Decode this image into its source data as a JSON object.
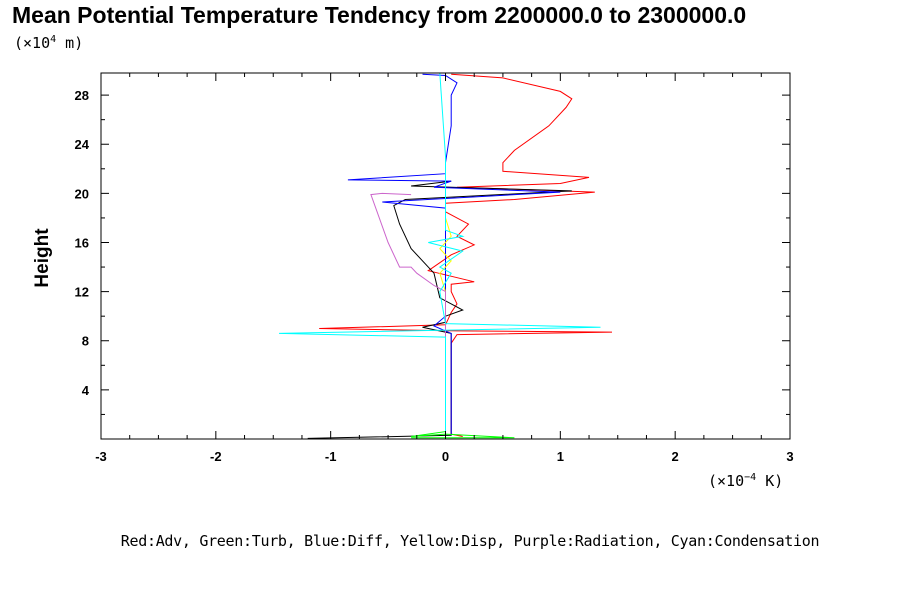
{
  "chart_data": {
    "type": "line",
    "title": "Mean Potential Temperature Tendency from 2200000.0 to 2300000.0",
    "ylabel": "Height",
    "yunit_base": "(×10",
    "yunit_exp": "4",
    "yunit_tail": " m)",
    "xunit_base": "(×10",
    "xunit_exp": "−4",
    "xunit_tail": " K)",
    "legend_text": "Red:Adv, Green:Turb, Blue:Diff, Yellow:Disp, Purple:Radiation, Cyan:Condensation",
    "xlim": [
      -3,
      3
    ],
    "ylim": [
      0,
      29.8
    ],
    "xticks": [
      -3,
      -2,
      -1,
      0,
      1,
      2,
      3
    ],
    "yticks": [
      4,
      8,
      12,
      16,
      20,
      24,
      28
    ],
    "series": [
      {
        "color": "#ff0000",
        "points": [
          [
            0.15,
            0.2
          ],
          [
            0.05,
            0.4
          ],
          [
            0.05,
            4
          ],
          [
            0.05,
            7.8
          ],
          [
            0.1,
            8.5
          ],
          [
            1.45,
            8.7
          ],
          [
            0.1,
            8.8
          ],
          [
            -1.1,
            9
          ],
          [
            0,
            9.3
          ],
          [
            0.05,
            10.3
          ],
          [
            0.1,
            11
          ],
          [
            0.05,
            12
          ],
          [
            0.05,
            12.6
          ],
          [
            0.25,
            12.8
          ],
          [
            -0.15,
            13.7
          ],
          [
            0.05,
            15
          ],
          [
            0.25,
            15.8
          ],
          [
            0.1,
            16.5
          ],
          [
            0.2,
            17.5
          ],
          [
            0,
            18.5
          ],
          [
            0,
            19.2
          ],
          [
            0.6,
            19.5
          ],
          [
            1.3,
            20.1
          ],
          [
            0.1,
            20.5
          ],
          [
            1,
            20.8
          ],
          [
            1.25,
            21.3
          ],
          [
            0.5,
            21.8
          ],
          [
            0.5,
            22.5
          ],
          [
            0.6,
            23.5
          ],
          [
            0.9,
            25.5
          ],
          [
            1.05,
            27
          ],
          [
            1.1,
            27.7
          ],
          [
            1.0,
            28.3
          ],
          [
            0.5,
            29.4
          ],
          [
            0.05,
            29.7
          ]
        ]
      },
      {
        "color": "#000000",
        "points": [
          [
            -1.2,
            0.05
          ],
          [
            0.05,
            0.3
          ],
          [
            0.05,
            4
          ],
          [
            0.05,
            7.8
          ],
          [
            0.05,
            8.6
          ],
          [
            -0.2,
            9.1
          ],
          [
            0,
            9.5
          ],
          [
            0,
            10
          ],
          [
            0.15,
            10.5
          ],
          [
            -0.05,
            11.5
          ],
          [
            -0.1,
            13.5
          ],
          [
            -0.3,
            15.5
          ],
          [
            -0.4,
            17.5
          ],
          [
            -0.45,
            19
          ],
          [
            -0.35,
            19.5
          ],
          [
            1.1,
            20.2
          ],
          [
            -0.3,
            20.6
          ],
          [
            0.05,
            21
          ]
        ]
      },
      {
        "color": "#0000ff",
        "points": [
          [
            0.05,
            0.3
          ],
          [
            0.05,
            8.6
          ],
          [
            -0.1,
            9.2
          ],
          [
            0,
            10
          ],
          [
            0,
            12
          ],
          [
            0,
            17
          ],
          [
            0,
            18.8
          ],
          [
            -0.55,
            19.3
          ],
          [
            1.0,
            20.1
          ],
          [
            -0.1,
            20.5
          ],
          [
            0.05,
            21
          ],
          [
            -0.85,
            21.1
          ],
          [
            0,
            21.6
          ],
          [
            0,
            22.5
          ],
          [
            0.05,
            25.5
          ],
          [
            0.05,
            28
          ],
          [
            0.1,
            29
          ],
          [
            0,
            29.6
          ],
          [
            -0.2,
            29.7
          ]
        ]
      },
      {
        "color": "#00ff00",
        "points": [
          [
            -0.3,
            0.1
          ],
          [
            0.6,
            0.1
          ],
          [
            0,
            0.4
          ],
          [
            -0.3,
            0.2
          ],
          [
            0,
            0.6
          ],
          [
            0,
            8.5
          ],
          [
            0,
            8.8
          ]
        ]
      },
      {
        "color": "#ffff00",
        "points": [
          [
            0,
            7
          ],
          [
            0,
            8.2
          ],
          [
            0,
            8.8
          ],
          [
            0,
            12
          ],
          [
            -0.05,
            13.5
          ],
          [
            0.05,
            14.5
          ],
          [
            -0.05,
            15.5
          ],
          [
            0.05,
            16.5
          ],
          [
            0,
            18
          ],
          [
            0,
            19.5
          ]
        ]
      },
      {
        "color": "#cc66cc",
        "points": [
          [
            0,
            0.3
          ],
          [
            0,
            12
          ],
          [
            -0.1,
            12.5
          ],
          [
            -0.25,
            13.5
          ],
          [
            -0.3,
            14
          ],
          [
            -0.4,
            14
          ],
          [
            -0.5,
            16
          ],
          [
            -0.65,
            19.9
          ],
          [
            -0.55,
            20
          ],
          [
            -0.3,
            19.9
          ]
        ]
      },
      {
        "color": "#00ffff",
        "points": [
          [
            0,
            0.3
          ],
          [
            0,
            8.3
          ],
          [
            -1.45,
            8.6
          ],
          [
            1.35,
            9.1
          ],
          [
            0,
            9.4
          ],
          [
            -0.05,
            12
          ],
          [
            0.05,
            13.5
          ],
          [
            -0.05,
            14
          ],
          [
            0.15,
            15.3
          ],
          [
            -0.15,
            16
          ],
          [
            0.15,
            16.5
          ],
          [
            0,
            17
          ],
          [
            0,
            19.5
          ],
          [
            0,
            23
          ],
          [
            -0.05,
            29.8
          ]
        ]
      }
    ]
  }
}
